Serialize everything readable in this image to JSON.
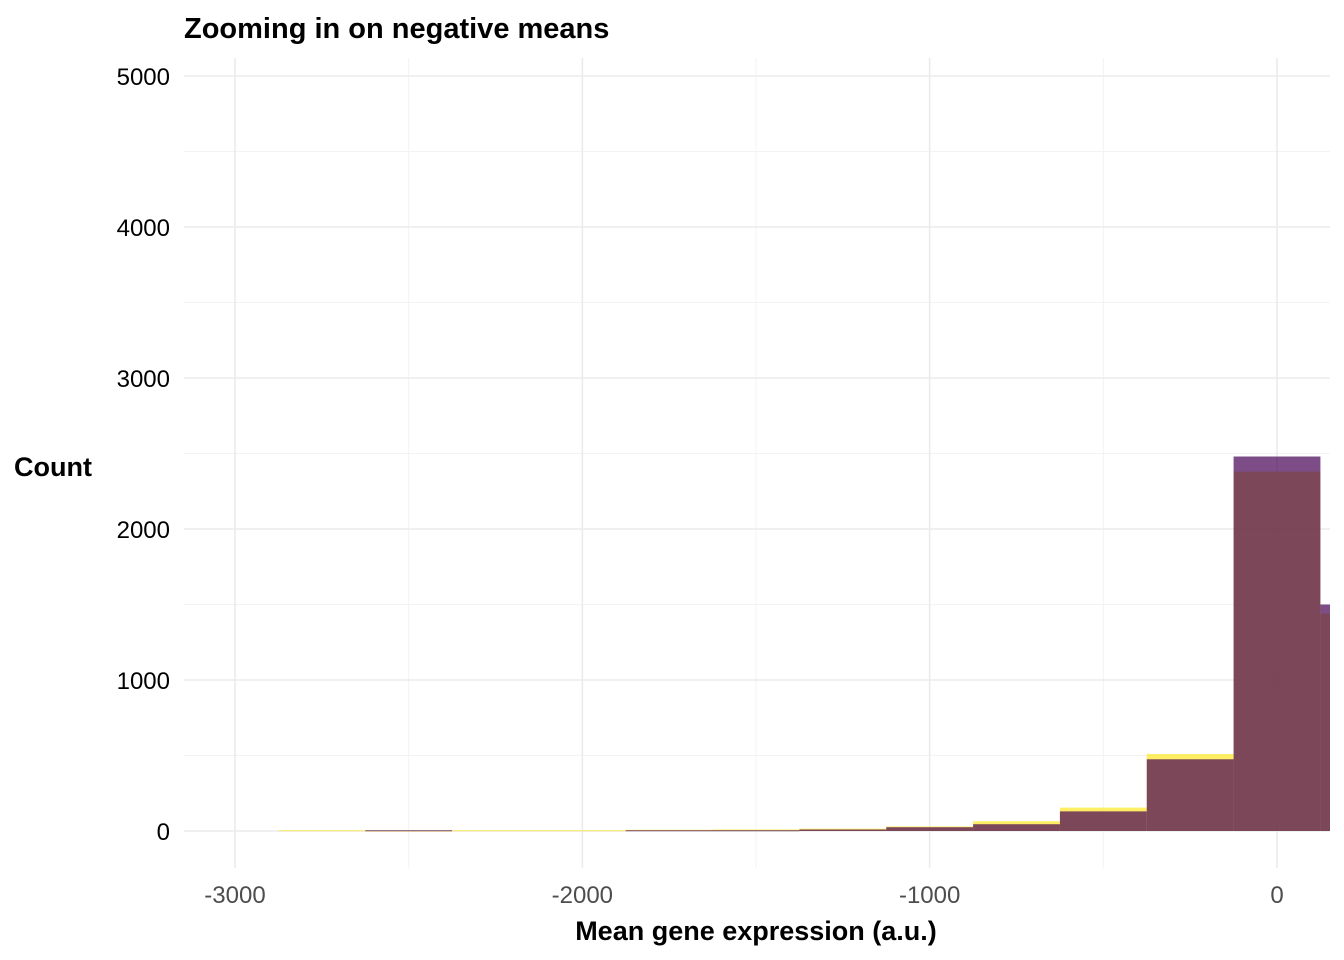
{
  "chart_data": {
    "type": "bar",
    "subtype": "stacked-histogram",
    "title": "Zooming in on negative means",
    "xlabel": "Mean gene expression (a.u.)",
    "ylabel": "Count",
    "xlim": [
      -3150,
      150
    ],
    "ylim": [
      -250,
      5100
    ],
    "x_ticks": [
      -3000,
      -2000,
      -1000,
      0
    ],
    "x_tick_labels": [
      "-3000",
      "-2000",
      "-1000",
      "0"
    ],
    "y_ticks": [
      0,
      1000,
      2000,
      3000,
      4000,
      5000
    ],
    "y_tick_labels": [
      "0",
      "1000",
      "2000",
      "3000",
      "4000",
      "5000"
    ],
    "grid": true,
    "legend": "none",
    "bin_width": 250,
    "bins": [
      {
        "x0": -2875,
        "x1": -2625
      },
      {
        "x0": -2625,
        "x1": -2375
      },
      {
        "x0": -2375,
        "x1": -2125
      },
      {
        "x0": -2125,
        "x1": -1875
      },
      {
        "x0": -1875,
        "x1": -1625
      },
      {
        "x0": -1625,
        "x1": -1375
      },
      {
        "x0": -1375,
        "x1": -1125
      },
      {
        "x0": -1125,
        "x1": -875
      },
      {
        "x0": -875,
        "x1": -625
      },
      {
        "x0": -625,
        "x1": -375
      },
      {
        "x0": -375,
        "x1": -125
      },
      {
        "x0": -125,
        "x1": 125
      },
      {
        "x0": 125,
        "x1": 375
      }
    ],
    "series": [
      {
        "color": "#fde725",
        "values": [
          5,
          3,
          5,
          5,
          8,
          10,
          15,
          30,
          65,
          155,
          510,
          2380,
          1440
        ]
      },
      {
        "color": "#440154",
        "values": [
          0,
          5,
          0,
          0,
          5,
          5,
          10,
          25,
          45,
          130,
          475,
          2480,
          1500
        ]
      }
    ],
    "opacity": 0.7
  }
}
